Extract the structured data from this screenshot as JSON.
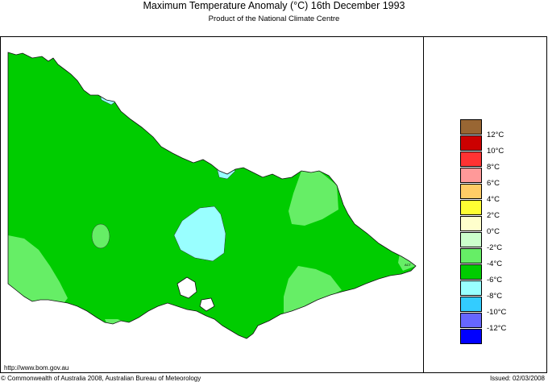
{
  "header": {
    "title": "Maximum Temperature Anomaly (°C)  16th December 1993",
    "subtitle": "Product of the National Climate Centre"
  },
  "map": {
    "region": "Victoria",
    "inset_label": "ACT"
  },
  "legend": {
    "bands": [
      {
        "label": "12°C",
        "color": "#996633"
      },
      {
        "label": "10°C",
        "color": "#cc0000"
      },
      {
        "label": "8°C",
        "color": "#ff3333"
      },
      {
        "label": "6°C",
        "color": "#ff9999"
      },
      {
        "label": "4°C",
        "color": "#ffcc66"
      },
      {
        "label": "2°C",
        "color": "#ffff33"
      },
      {
        "label": "0°C",
        "color": "#ffffcc"
      },
      {
        "label": "-2°C",
        "color": "#ccffcc"
      },
      {
        "label": "-4°C",
        "color": "#66ee66"
      },
      {
        "label": "-6°C",
        "color": "#00cc00"
      },
      {
        "label": "-8°C",
        "color": "#99ffff"
      },
      {
        "label": "-10°C",
        "color": "#33ccff"
      },
      {
        "label": "-12°C",
        "color": "#6666ff"
      },
      {
        "label": "",
        "color": "#0000ff"
      }
    ]
  },
  "footer": {
    "url": "http://www.bom.gov.au",
    "copyright": "© Commonwealth of Australia 2008, Australian Bureau of Meteorology",
    "issued": "Issued: 02/03/2008"
  }
}
